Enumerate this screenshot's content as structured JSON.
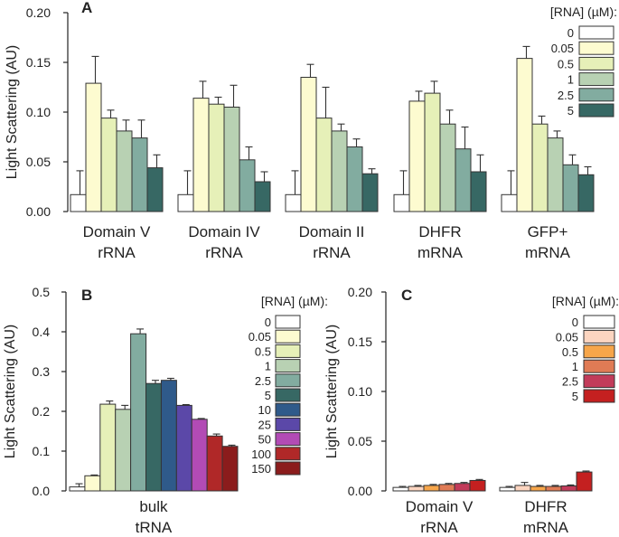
{
  "chart_data": [
    {
      "panel": "A",
      "type": "bar",
      "ylabel": "Light Scattering (AU)",
      "ylim": [
        0,
        0.2
      ],
      "yticks": [
        "0.00",
        "0.05",
        "0.10",
        "0.15",
        "0.20"
      ],
      "legend_title": "[RNA] (µM):",
      "concentrations": [
        "0",
        "0.05",
        "0.5",
        "1",
        "2.5",
        "5"
      ],
      "colors": [
        "#ffffff",
        "#fdfbd0",
        "#e6f0b8",
        "#b8d1b3",
        "#82aca0",
        "#376864"
      ],
      "groups": [
        {
          "label_line1": "Domain V",
          "label_line2": "rRNA",
          "values": [
            0.017,
            0.129,
            0.094,
            0.081,
            0.074,
            0.044
          ],
          "errors": [
            0.024,
            0.027,
            0.008,
            0.011,
            0.018,
            0.013
          ]
        },
        {
          "label_line1": "Domain IV",
          "label_line2": "rRNA",
          "values": [
            0.017,
            0.114,
            0.108,
            0.105,
            0.052,
            0.03
          ],
          "errors": [
            0.024,
            0.017,
            0.007,
            0.022,
            0.013,
            0.01
          ]
        },
        {
          "label_line1": "Domain II",
          "label_line2": "rRNA",
          "values": [
            0.017,
            0.135,
            0.094,
            0.081,
            0.065,
            0.038
          ],
          "errors": [
            0.024,
            0.013,
            0.031,
            0.007,
            0.008,
            0.005
          ]
        },
        {
          "label_line1": "DHFR",
          "label_line2": "mRNA",
          "values": [
            0.017,
            0.111,
            0.119,
            0.088,
            0.063,
            0.04
          ],
          "errors": [
            0.024,
            0.01,
            0.012,
            0.014,
            0.022,
            0.017
          ]
        },
        {
          "label_line1": "GFP+",
          "label_line2": "mRNA",
          "values": [
            0.017,
            0.154,
            0.088,
            0.074,
            0.047,
            0.037
          ],
          "errors": [
            0.024,
            0.012,
            0.008,
            0.007,
            0.01,
            0.008
          ]
        }
      ]
    },
    {
      "panel": "B",
      "type": "bar",
      "ylabel": "Light Scattering (AU)",
      "ylim": [
        0,
        0.5
      ],
      "yticks": [
        "0.0",
        "0.1",
        "0.2",
        "0.3",
        "0.4",
        "0.5"
      ],
      "legend_title": "[RNA] (µM):",
      "concentrations": [
        "0",
        "0.05",
        "0.5",
        "1",
        "2.5",
        "5",
        "10",
        "25",
        "50",
        "100",
        "150"
      ],
      "colors": [
        "#ffffff",
        "#fdfbd0",
        "#e6f0b8",
        "#b8d1b3",
        "#82aca0",
        "#376864",
        "#2f5a8a",
        "#5b48a8",
        "#b24bb5",
        "#b02828",
        "#8b1c1c"
      ],
      "groups": [
        {
          "label_line1": "bulk",
          "label_line2": "tRNA",
          "values": [
            0.01,
            0.038,
            0.218,
            0.205,
            0.395,
            0.27,
            0.278,
            0.215,
            0.18,
            0.138,
            0.112
          ],
          "errors": [
            0.008,
            0.002,
            0.008,
            0.01,
            0.012,
            0.008,
            0.005,
            0.002,
            0.002,
            0.005,
            0.003
          ]
        }
      ]
    },
    {
      "panel": "C",
      "type": "bar",
      "ylabel": "Light Scattering (AU)",
      "ylim": [
        0,
        0.2
      ],
      "yticks": [
        "0.00",
        "0.05",
        "0.10",
        "0.15",
        "0.20"
      ],
      "legend_title": "[RNA] (µM):",
      "concentrations": [
        "0",
        "0.05",
        "0.5",
        "1",
        "2.5",
        "5"
      ],
      "colors": [
        "#ffffff",
        "#fcd5c0",
        "#f7a64a",
        "#e07b55",
        "#c23b5a",
        "#c42020"
      ],
      "groups": [
        {
          "label_line1": "Domain V",
          "label_line2": "rRNA",
          "values": [
            0.0035,
            0.0045,
            0.0055,
            0.0065,
            0.0075,
            0.0105
          ],
          "errors": [
            0.001,
            0.001,
            0.001,
            0.001,
            0.001,
            0.001
          ]
        },
        {
          "label_line1": "DHFR",
          "label_line2": "mRNA",
          "values": [
            0.0035,
            0.0055,
            0.0045,
            0.0045,
            0.005,
            0.019
          ],
          "errors": [
            0.001,
            0.003,
            0.001,
            0.001,
            0.001,
            0.001
          ]
        }
      ]
    }
  ]
}
